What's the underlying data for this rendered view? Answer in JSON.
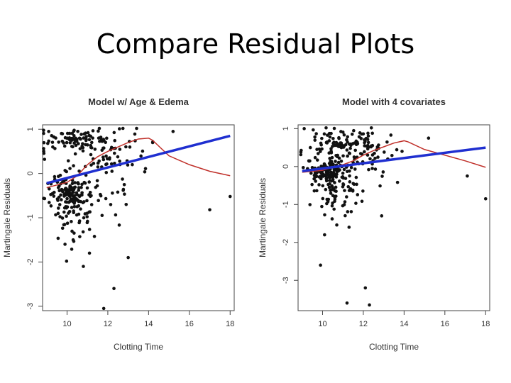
{
  "slide": {
    "title": "Compare Residual Plots"
  },
  "chart_data": [
    {
      "type": "scatter",
      "title": "Model w/ Age & Edema",
      "xlabel": "Clotting Time",
      "ylabel": "Martingale Residuals",
      "xlim": [
        8.8,
        18.2
      ],
      "ylim": [
        -3.1,
        1.1
      ],
      "xticks": [
        10,
        12,
        14,
        16,
        18
      ],
      "yticks": [
        -3,
        -2,
        -1,
        0,
        1
      ],
      "grid": false,
      "legend": "none",
      "colors": {
        "points": "#111111",
        "linear_fit": "#1f2fd0",
        "smooth": "#c0302a"
      },
      "linear_fit": {
        "x": [
          9,
          18
        ],
        "y": [
          -0.22,
          0.85
        ]
      },
      "smooth": {
        "x": [
          9,
          10,
          10.5,
          11,
          11.5,
          12,
          12.5,
          13,
          13.5,
          14,
          14.2,
          15,
          16,
          17,
          18
        ],
        "y": [
          -0.32,
          -0.2,
          -0.05,
          0.2,
          0.38,
          0.5,
          0.6,
          0.7,
          0.78,
          0.8,
          0.75,
          0.4,
          0.2,
          0.05,
          -0.05
        ]
      },
      "extra_points": [
        {
          "x": 17,
          "y": -0.82
        },
        {
          "x": 18,
          "y": -0.52
        },
        {
          "x": 15.2,
          "y": 0.95
        },
        {
          "x": 14.2,
          "y": 0.7
        },
        {
          "x": 13,
          "y": -1.9
        },
        {
          "x": 12.3,
          "y": -2.6
        },
        {
          "x": 11.8,
          "y": -3.05
        },
        {
          "x": 10.8,
          "y": -2.1
        },
        {
          "x": 11.1,
          "y": -1.8
        },
        {
          "x": 10.3,
          "y": -1.5
        },
        {
          "x": 9.9,
          "y": -1.6
        },
        {
          "x": 12.9,
          "y": -0.7
        },
        {
          "x": 13.2,
          "y": 0.2
        },
        {
          "x": 9.1,
          "y": 0.95
        },
        {
          "x": 9.3,
          "y": 0.6
        }
      ]
    },
    {
      "type": "scatter",
      "title": "Model with 4 covariates",
      "xlabel": "Clotting Time",
      "ylabel": "Martingale Residuals",
      "xlim": [
        8.8,
        18.2
      ],
      "ylim": [
        -3.8,
        1.1
      ],
      "xticks": [
        10,
        12,
        14,
        16,
        18
      ],
      "yticks": [
        -3,
        -2,
        -1,
        0,
        1
      ],
      "grid": false,
      "legend": "none",
      "colors": {
        "points": "#111111",
        "linear_fit": "#1f2fd0",
        "smooth": "#c0302a"
      },
      "linear_fit": {
        "x": [
          9,
          18
        ],
        "y": [
          -0.12,
          0.5
        ]
      },
      "smooth": {
        "x": [
          9,
          10,
          10.5,
          11,
          11.5,
          12,
          12.5,
          13,
          13.5,
          14,
          14.2,
          15,
          16,
          17,
          18
        ],
        "y": [
          -0.15,
          -0.1,
          -0.02,
          0.05,
          0.15,
          0.3,
          0.42,
          0.52,
          0.62,
          0.68,
          0.65,
          0.45,
          0.3,
          0.15,
          -0.02
        ]
      },
      "extra_points": [
        {
          "x": 17.1,
          "y": -0.25
        },
        {
          "x": 18,
          "y": -0.85
        },
        {
          "x": 15.2,
          "y": 0.75
        },
        {
          "x": 12.1,
          "y": -3.2
        },
        {
          "x": 11.2,
          "y": -3.6
        },
        {
          "x": 12.3,
          "y": -3.65
        },
        {
          "x": 9.9,
          "y": -2.6
        },
        {
          "x": 11.3,
          "y": -1.6
        },
        {
          "x": 10.1,
          "y": -1.8
        },
        {
          "x": 12.9,
          "y": -1.3
        },
        {
          "x": 13.2,
          "y": 0.2
        },
        {
          "x": 9.1,
          "y": 1.0
        },
        {
          "x": 9.4,
          "y": 0.5
        },
        {
          "x": 13.9,
          "y": 0.4
        }
      ]
    }
  ]
}
